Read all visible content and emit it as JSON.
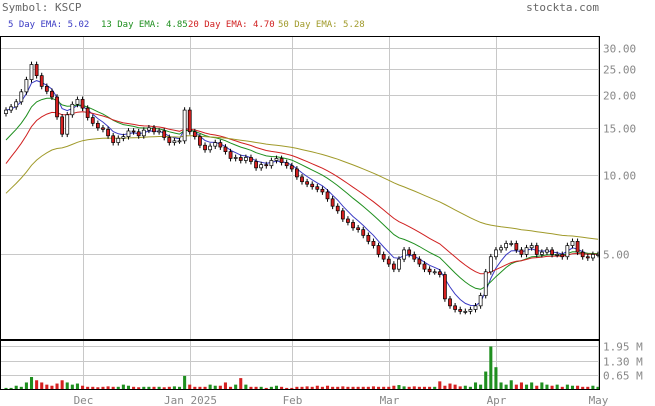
{
  "header": {
    "symbol_label": "Symbol: KSCP",
    "site": "stockta.com"
  },
  "legend": [
    {
      "label": "5 Day EMA: 5.02",
      "color": "#3b3bc4"
    },
    {
      "label": "13 Day EMA: 4.85",
      "color": "#1f8f1f"
    },
    {
      "label": "20 Day EMA: 4.70",
      "color": "#d02020"
    },
    {
      "label": "50 Day EMA: 5.28",
      "color": "#a09a2a"
    }
  ],
  "colors": {
    "up": "#ffffff",
    "down": "#d42020",
    "vol_up": "#1f8f1f",
    "vol_down": "#d42020"
  },
  "chart_data": {
    "type": "candlestick",
    "price_axis": {
      "scale": "log",
      "ylim": [
        2.4,
        33
      ],
      "ticks": [
        30,
        25,
        20,
        15,
        10,
        5
      ],
      "tick_labels": [
        "30.00",
        "25.00",
        "20.00",
        "15.00",
        "10.00",
        "5.00"
      ]
    },
    "volume_axis": {
      "unit": "M",
      "ylim": [
        0,
        2.2
      ],
      "ticks": [
        1.95,
        1.3,
        0.65
      ],
      "tick_labels": [
        "1.95 M",
        "1.30 M",
        "0.65 M"
      ]
    },
    "x_labels": [
      {
        "index": 15,
        "label": "Dec"
      },
      {
        "index": 36,
        "label": "Jan 2025"
      },
      {
        "index": 56,
        "label": "Feb"
      },
      {
        "index": 75,
        "label": "Mar"
      },
      {
        "index": 96,
        "label": "Apr"
      },
      {
        "index": 116,
        "label": "May"
      }
    ],
    "close": [
      17.5,
      18,
      18.8,
      20.5,
      22.8,
      26,
      23.6,
      21.5,
      20.6,
      19.6,
      16.5,
      14.2,
      16.8,
      18.4,
      19.2,
      17.8,
      16.4,
      15.6,
      15,
      14.8,
      14,
      13.2,
      13.7,
      13.9,
      14.6,
      14.5,
      14,
      14.7,
      15,
      14.5,
      14.6,
      13.8,
      13.2,
      13.4,
      13.4,
      17.5,
      14.5,
      13.9,
      12.9,
      12.4,
      12.8,
      13.2,
      12.7,
      12.2,
      11.5,
      11.6,
      11.3,
      11.6,
      11.2,
      10.6,
      10.9,
      10.8,
      11.3,
      11.5,
      11.1,
      10.8,
      10.5,
      9.8,
      9.4,
      9.2,
      9.0,
      8.8,
      8.6,
      8.1,
      7.6,
      7.3,
      6.8,
      6.6,
      6.3,
      6.2,
      5.9,
      5.6,
      5.4,
      5.0,
      4.8,
      4.6,
      4.4,
      4.8,
      5.2,
      5.0,
      4.8,
      4.6,
      4.4,
      4.3,
      4.3,
      4.2,
      3.4,
      3.2,
      3.1,
      3.05,
      3.05,
      3.1,
      3.2,
      3.5,
      4.3,
      4.9,
      5.2,
      5.3,
      5.5,
      5.5,
      5.2,
      5.0,
      5.3,
      5.4,
      5.0,
      5.1,
      5.2,
      5.0,
      5.0,
      4.9,
      5.4,
      5.6,
      5.1,
      4.9,
      4.85,
      5.0,
      5.0
    ],
    "volume": [
      0.05,
      0.05,
      0.15,
      0.1,
      0.3,
      0.55,
      0.4,
      0.3,
      0.2,
      0.15,
      0.25,
      0.4,
      0.3,
      0.2,
      0.25,
      0.15,
      0.1,
      0.1,
      0.08,
      0.1,
      0.12,
      0.1,
      0.1,
      0.2,
      0.15,
      0.1,
      0.08,
      0.1,
      0.1,
      0.1,
      0.1,
      0.08,
      0.1,
      0.12,
      0.1,
      0.6,
      0.2,
      0.1,
      0.1,
      0.1,
      0.2,
      0.15,
      0.15,
      0.3,
      0.1,
      0.2,
      0.5,
      0.2,
      0.1,
      0.1,
      0.1,
      0.05,
      0.1,
      0.15,
      0.1,
      0.05,
      0.05,
      0.1,
      0.1,
      0.12,
      0.1,
      0.15,
      0.1,
      0.15,
      0.1,
      0.1,
      0.12,
      0.1,
      0.1,
      0.1,
      0.1,
      0.1,
      0.12,
      0.1,
      0.1,
      0.1,
      0.15,
      0.18,
      0.12,
      0.1,
      0.12,
      0.1,
      0.1,
      0.1,
      0.1,
      0.35,
      0.15,
      0.25,
      0.2,
      0.12,
      0.15,
      0.1,
      0.3,
      0.2,
      0.8,
      1.95,
      1.0,
      0.3,
      0.2,
      0.4,
      0.2,
      0.3,
      0.2,
      0.3,
      0.15,
      0.3,
      0.2,
      0.15,
      0.2,
      0.1,
      0.2,
      0.15,
      0.15,
      0.1,
      0.1,
      0.15,
      0.1
    ]
  }
}
